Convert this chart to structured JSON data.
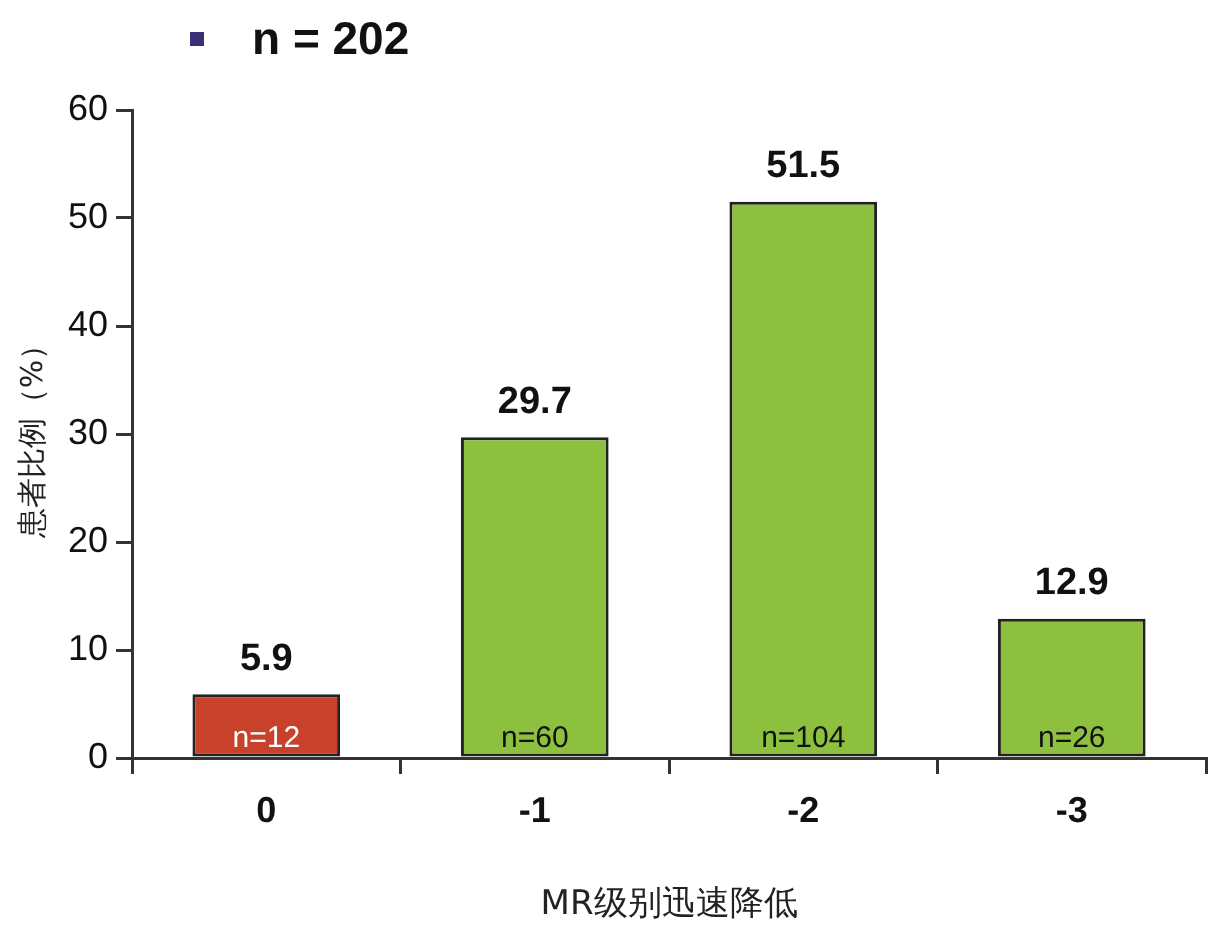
{
  "chart_data": {
    "type": "bar",
    "title": "n = 202",
    "xlabel": "MR级别迅速降低",
    "ylabel": "患者比例（%）",
    "categories": [
      "0",
      "-1",
      "-2",
      "-3"
    ],
    "values": [
      5.9,
      29.7,
      51.5,
      12.9
    ],
    "colors": [
      "#c8412a",
      "#8dc03f",
      "#8dc03f",
      "#8dc03f"
    ],
    "ylim": [
      0,
      60
    ],
    "yticks": [
      0,
      10,
      20,
      30,
      40,
      50,
      60
    ],
    "grid": false,
    "legend": false,
    "data_labels": true,
    "annotations": [
      {
        "text": "n=12",
        "x": "0",
        "y": 0
      },
      {
        "text": "n=60",
        "x": "-1",
        "y": 0
      },
      {
        "text": "n=104",
        "x": "-2",
        "y": 0
      },
      {
        "text": "n=26",
        "x": "-3",
        "y": 0
      }
    ]
  }
}
